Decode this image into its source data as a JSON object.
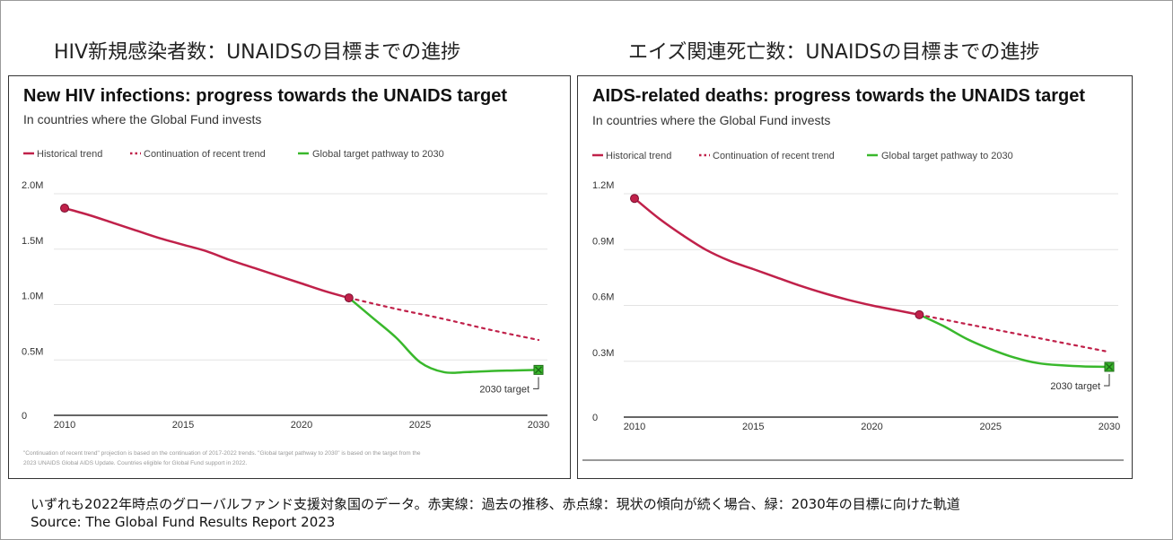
{
  "jp_titles": {
    "left": "HIV新規感染者数：UNAIDSの目標までの進捗",
    "right": "エイズ関連死亡数：UNAIDSの目標までの進捗"
  },
  "colors": {
    "historical": "#c0214a",
    "target": "#39b82c",
    "grid": "#e3e3e3"
  },
  "legend": {
    "historical": "Historical trend",
    "continuation": "Continuation of recent trend",
    "target": "Global target pathway to 2030"
  },
  "target_label": "2030 target",
  "caption": {
    "line1": "いずれも2022年時点のグローバルファンド支援対象国のデータ。赤実線：過去の推移、赤点線：現状の傾向が続く場合、緑：2030年の目標に向けた軌道",
    "line2": "Source: The Global Fund Results Report 2023"
  },
  "chart_data": [
    {
      "type": "line",
      "title": "New HIV infections: progress towards the UNAIDS target",
      "subtitle": "In countries where the Global Fund invests",
      "xlabel": "",
      "ylabel": "",
      "xlim": [
        2010,
        2030
      ],
      "ylim": [
        0,
        2000000
      ],
      "x_ticks": [
        2010,
        2015,
        2020,
        2025,
        2030
      ],
      "x_tick_labels": [
        "2010",
        "2015",
        "2020",
        "2025",
        "2030"
      ],
      "y_ticks": [
        0,
        500000,
        1000000,
        1500000,
        2000000
      ],
      "y_tick_labels": [
        "0",
        "0.5M",
        "1.0M",
        "1.5M",
        "2.0M"
      ],
      "footnote": [
        "\"Continuation of recent trend\" projection is based on the continuation of 2017-2022 trends. \"Global target pathway to 2030\" is based on the target from the",
        "2023 UNAIDS Global AIDS Update. Countries eligible for Global Fund support in 2022."
      ],
      "series": [
        {
          "name": "Historical trend",
          "style": "solid-red",
          "x": [
            2010,
            2011,
            2012,
            2013,
            2014,
            2015,
            2016,
            2017,
            2018,
            2019,
            2020,
            2021,
            2022
          ],
          "y": [
            1870000,
            1810000,
            1740000,
            1670000,
            1600000,
            1540000,
            1480000,
            1400000,
            1330000,
            1260000,
            1190000,
            1120000,
            1060000
          ]
        },
        {
          "name": "Continuation of recent trend",
          "style": "dotted-red",
          "x": [
            2022,
            2024,
            2026,
            2028,
            2030
          ],
          "y": [
            1060000,
            960000,
            870000,
            770000,
            680000
          ]
        },
        {
          "name": "Global target pathway to 2030",
          "style": "solid-green",
          "x": [
            2022,
            2023,
            2024,
            2025,
            2026,
            2027,
            2028,
            2029,
            2030
          ],
          "y": [
            1060000,
            880000,
            700000,
            480000,
            390000,
            390000,
            400000,
            405000,
            410000
          ]
        }
      ],
      "start_point": {
        "x": 2010,
        "y": 1870000
      },
      "mid_point": {
        "x": 2022,
        "y": 1060000
      },
      "target_point": {
        "x": 2030,
        "y": 410000
      }
    },
    {
      "type": "line",
      "title": "AIDS-related deaths: progress towards the UNAIDS target",
      "subtitle": "In countries where the Global Fund invests",
      "xlabel": "",
      "ylabel": "",
      "xlim": [
        2010,
        2030
      ],
      "ylim": [
        0,
        1200000
      ],
      "x_ticks": [
        2010,
        2015,
        2020,
        2025,
        2030
      ],
      "x_tick_labels": [
        "2010",
        "2015",
        "2020",
        "2025",
        "2030"
      ],
      "y_ticks": [
        0,
        300000,
        600000,
        900000,
        1200000
      ],
      "y_tick_labels": [
        "0",
        "0.3M",
        "0.6M",
        "0.9M",
        "1.2M"
      ],
      "footnote": [],
      "series": [
        {
          "name": "Historical trend",
          "style": "solid-red",
          "x": [
            2010,
            2011,
            2012,
            2013,
            2014,
            2015,
            2016,
            2017,
            2018,
            2019,
            2020,
            2021,
            2022
          ],
          "y": [
            1175000,
            1070000,
            980000,
            900000,
            840000,
            795000,
            750000,
            705000,
            665000,
            630000,
            600000,
            575000,
            550000
          ]
        },
        {
          "name": "Continuation of recent trend",
          "style": "dotted-red",
          "x": [
            2022,
            2024,
            2026,
            2028,
            2030
          ],
          "y": [
            550000,
            500000,
            450000,
            400000,
            350000
          ]
        },
        {
          "name": "Global target pathway to 2030",
          "style": "solid-green",
          "x": [
            2022,
            2023,
            2024,
            2025,
            2026,
            2027,
            2028,
            2029,
            2030
          ],
          "y": [
            550000,
            490000,
            420000,
            365000,
            320000,
            290000,
            278000,
            272000,
            270000
          ]
        }
      ],
      "start_point": {
        "x": 2010,
        "y": 1175000
      },
      "mid_point": {
        "x": 2022,
        "y": 550000
      },
      "target_point": {
        "x": 2030,
        "y": 270000
      }
    }
  ]
}
